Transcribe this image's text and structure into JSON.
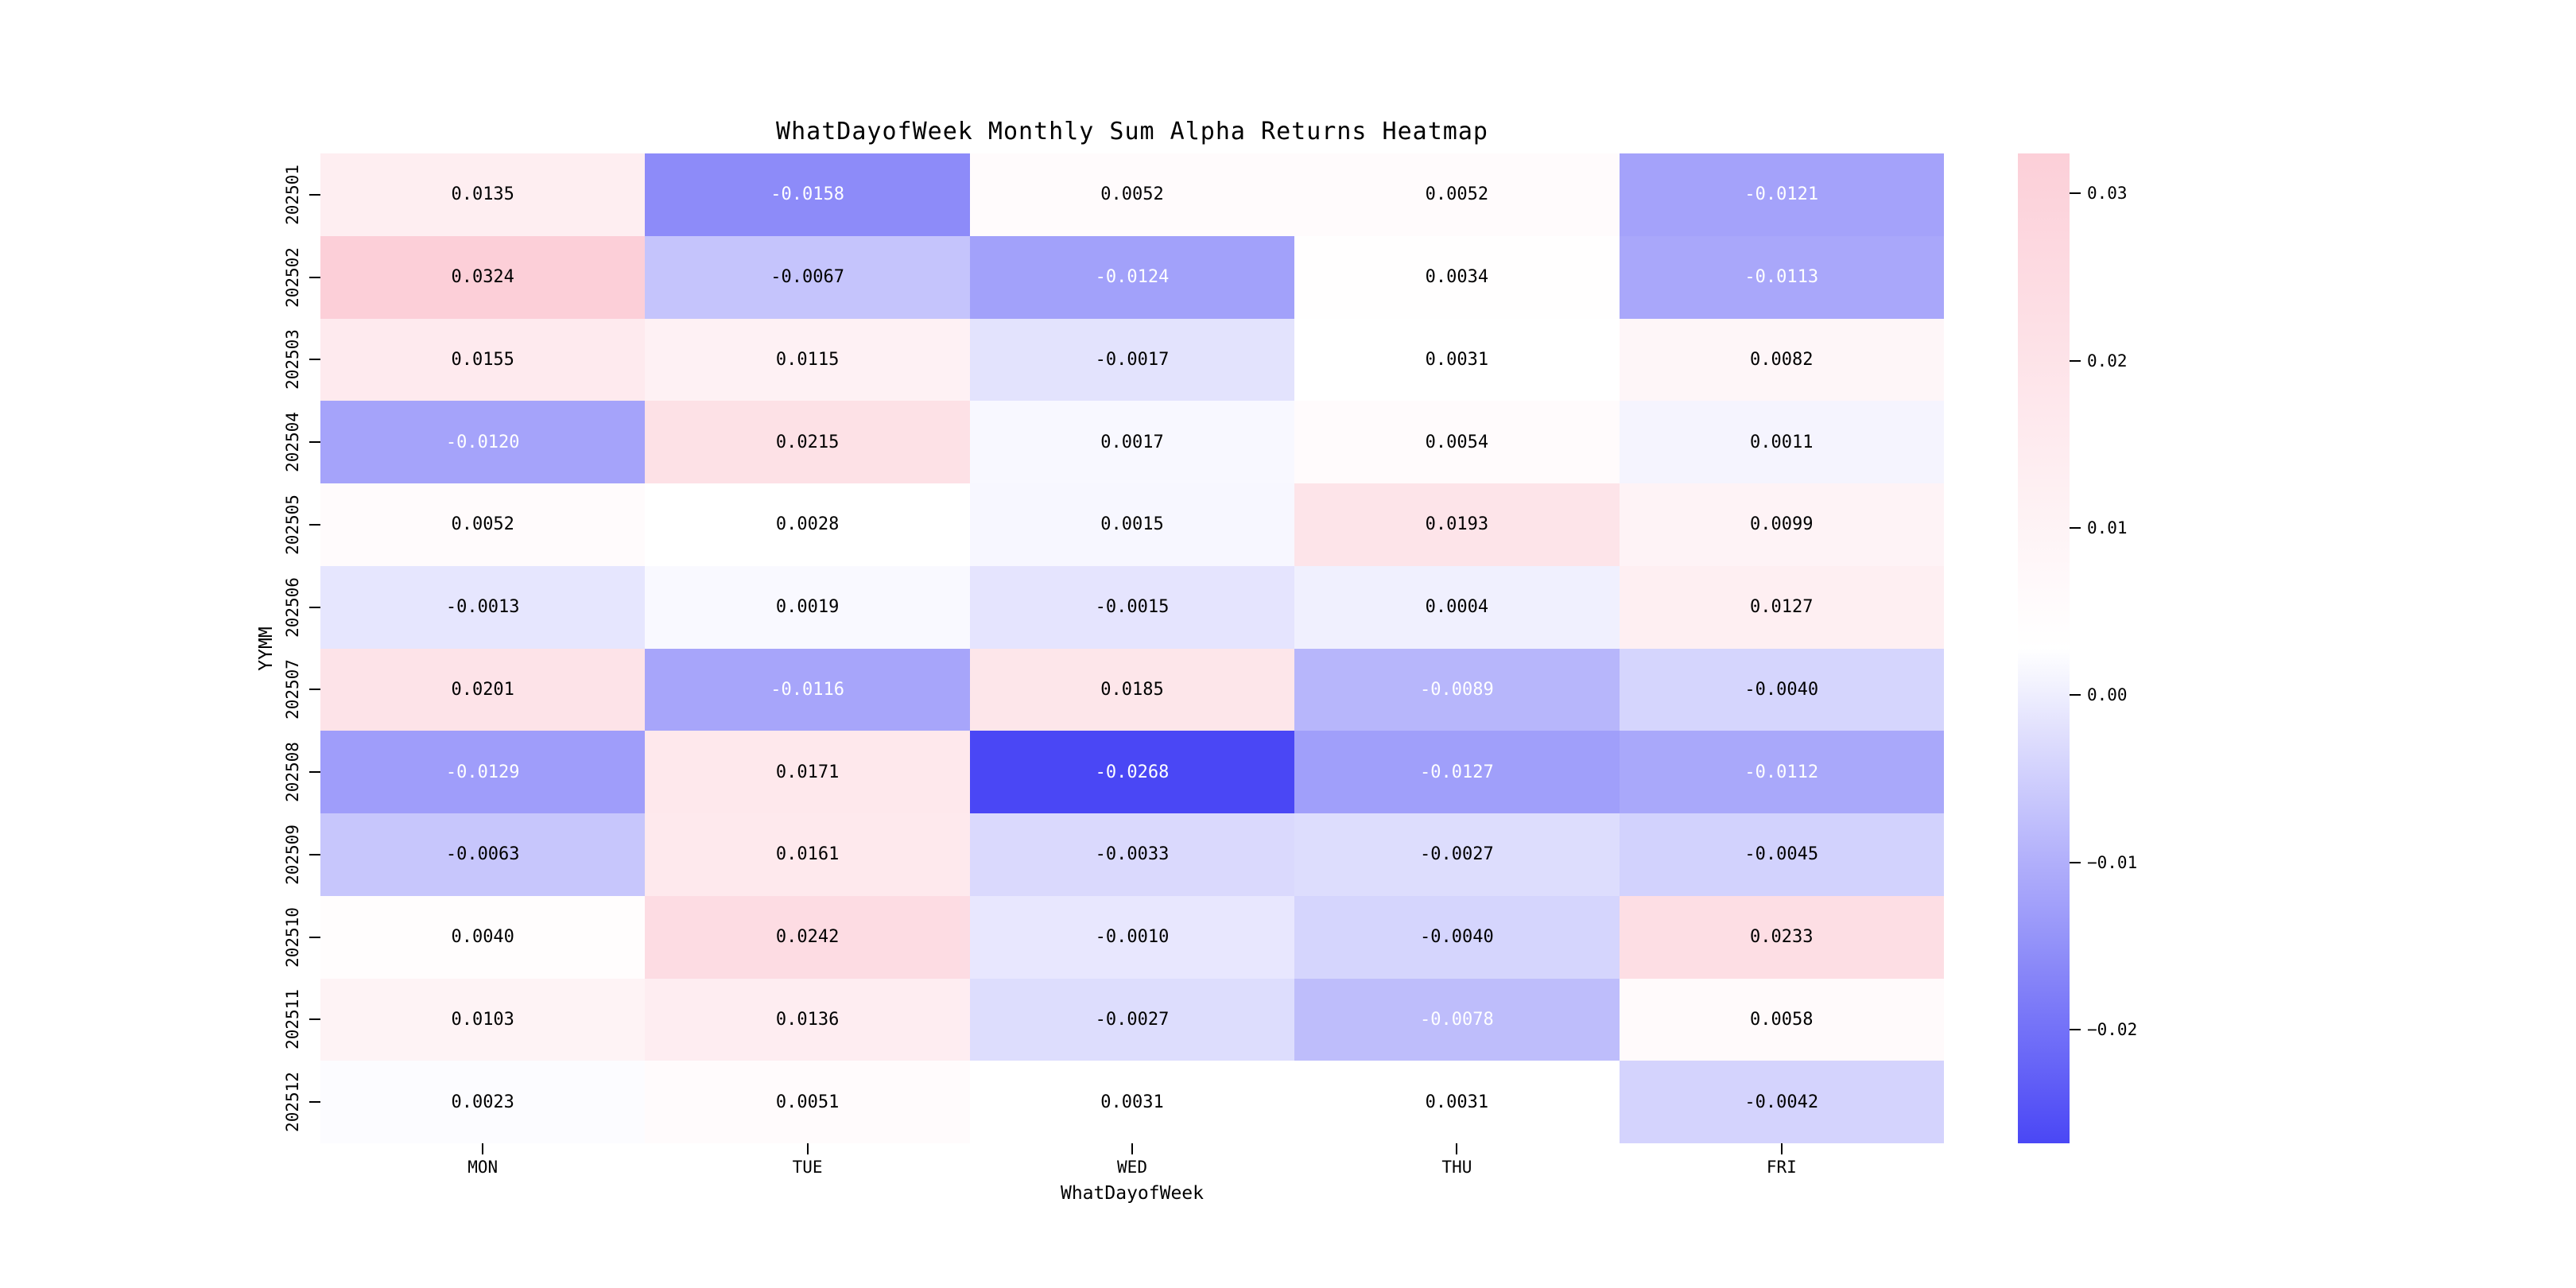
{
  "chart_data": {
    "type": "heatmap",
    "title": "WhatDayofWeek Monthly Sum Alpha Returns Heatmap",
    "xlabel": "WhatDayofWeek",
    "ylabel": "YYMM",
    "x_categories": [
      "MON",
      "TUE",
      "WED",
      "THU",
      "FRI"
    ],
    "y_categories": [
      "202501",
      "202502",
      "202503",
      "202504",
      "202505",
      "202506",
      "202507",
      "202508",
      "202509",
      "202510",
      "202511",
      "202512"
    ],
    "values": [
      [
        0.0135,
        -0.0158,
        0.0052,
        0.0052,
        -0.0121
      ],
      [
        0.0324,
        -0.0067,
        -0.0124,
        0.0034,
        -0.0113
      ],
      [
        0.0155,
        0.0115,
        -0.0017,
        0.0031,
        0.0082
      ],
      [
        -0.012,
        0.0215,
        0.0017,
        0.0054,
        0.0011
      ],
      [
        0.0052,
        0.0028,
        0.0015,
        0.0193,
        0.0099
      ],
      [
        -0.0013,
        0.0019,
        -0.0015,
        0.0004,
        0.0127
      ],
      [
        0.0201,
        -0.0116,
        0.0185,
        -0.0089,
        -0.004
      ],
      [
        -0.0129,
        0.0171,
        -0.0268,
        -0.0127,
        -0.0112
      ],
      [
        -0.0063,
        0.0161,
        -0.0033,
        -0.0027,
        -0.0045
      ],
      [
        0.004,
        0.0242,
        -0.001,
        -0.004,
        0.0233
      ],
      [
        0.0103,
        0.0136,
        -0.0027,
        -0.0078,
        0.0058
      ],
      [
        0.0023,
        0.0051,
        0.0031,
        0.0031,
        -0.0042
      ]
    ],
    "value_decimals": 4,
    "vmin": -0.0268,
    "vmax": 0.0324,
    "colorbar": {
      "tick_values": [
        0.03,
        0.02,
        0.01,
        0.0,
        -0.01,
        -0.02
      ],
      "tick_labels": [
        "0.03",
        "0.02",
        "0.01",
        "0.00",
        "−0.01",
        "−0.02"
      ],
      "position": "right"
    },
    "colors": {
      "negative_end": "#4a47f5",
      "midpoint": "#ffffff",
      "positive_end": "#fccfd8",
      "annotation_dark": "#000000",
      "annotation_light": "#ffffff"
    },
    "legend": "none",
    "grid": false
  }
}
